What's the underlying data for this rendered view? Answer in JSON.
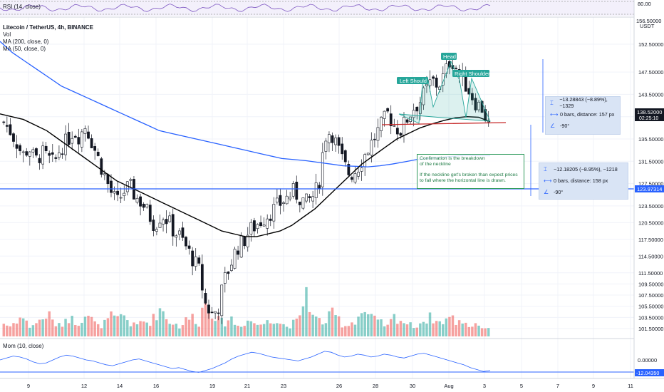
{
  "header": {
    "title": "Litecoin / TetherUS, 4h, BINANCE",
    "vol": "Vol",
    "ma200": "MA (200, close, 0)",
    "ma50": "MA (50, close, 0)",
    "rsi": "RSI (14, close)",
    "mom": "Mom (10, close)"
  },
  "price_axis": {
    "currency": "USDT",
    "ticks": [
      "152.50000",
      "147.50000",
      "143.50000",
      "139.50000",
      "135.50000",
      "131.50000",
      "127.50000",
      "123.50000",
      "120.50000",
      "117.50000",
      "114.50000",
      "111.50000",
      "109.50000",
      "107.50000",
      "105.50000",
      "103.50000",
      "101.50000"
    ],
    "current_price": "138.52000",
    "countdown": "02:25:10",
    "neckline_price": "123.97314",
    "top_partial": "156.50000"
  },
  "rsi_axis": {
    "tick": "80.00"
  },
  "mom_axis": {
    "tick": "0.00000",
    "level": "-12.04350"
  },
  "time_axis": [
    "9",
    "12",
    "14",
    "16",
    "19",
    "21",
    "23",
    "26",
    "28",
    "30",
    "Aug",
    "3",
    "5",
    "7",
    "9",
    "11"
  ],
  "annotations": {
    "head": "Head",
    "left_shoulder": "Left Should",
    "right_shoulder": "Right Shoulder",
    "note_line1": "Confirmation is the breakdown",
    "note_line2": "of the neckline",
    "note_line3": "If the neckline get's broken than expect prices",
    "note_line4": "to fall where the horizontal line is drawn."
  },
  "measure1": {
    "change": "−13.28843 (−8.89%), −1329",
    "bars": "0 bars, distance: 157 px",
    "angle": "-90°"
  },
  "measure2": {
    "change": "−12.18205 (−8.95%), −1218",
    "bars": "0 bars, distance: 158 px",
    "angle": "-90°"
  },
  "colors": {
    "up": "#26a69a",
    "down": "#ef5350",
    "ma200": "#2962ff",
    "ma50": "#000000",
    "pattern": "#26a69a",
    "neckline": "#c62828",
    "hline": "#2962ff"
  },
  "chart_data": {
    "type": "candlestick",
    "symbol": "Litecoin / TetherUS, 4h, BINANCE",
    "x_labels": [
      "9",
      "12",
      "14",
      "16",
      "19",
      "21",
      "23",
      "26",
      "28",
      "30",
      "Aug",
      "3"
    ],
    "close_profile": [
      138.5,
      137,
      135,
      132.5,
      134,
      131.5,
      133,
      132,
      131,
      134,
      135,
      137,
      136,
      138,
      135,
      132,
      129,
      126,
      124,
      126,
      127,
      125,
      124,
      122,
      120,
      122,
      121,
      119,
      118,
      116,
      114,
      112,
      106,
      104,
      105,
      110,
      113,
      116,
      117,
      119,
      120,
      121,
      122,
      123,
      124,
      125,
      126,
      125,
      124,
      125,
      127,
      136,
      137,
      134,
      131,
      129,
      130,
      132,
      134,
      136,
      138,
      140,
      138,
      137,
      139,
      141,
      142,
      144,
      146,
      145,
      147,
      150,
      148,
      146,
      144,
      142,
      141,
      138
    ],
    "ma200_profile": [
      153,
      151,
      149.5,
      148,
      146.5,
      145,
      144,
      143,
      142,
      141,
      140,
      139,
      138,
      137,
      136.5,
      136,
      135.5,
      135,
      134.5,
      134,
      133.5,
      133,
      132.5,
      132,
      131.8,
      131.6,
      131.3,
      131,
      130.7,
      130.6,
      130.5,
      130.7,
      131,
      131.4,
      131.8,
      132,
      132.2,
      132.4,
      132.6,
      132.5,
      132.5
    ],
    "ma50_profile": [
      140,
      139.5,
      139,
      138,
      137,
      135.5,
      134,
      132.5,
      131,
      129.5,
      128,
      127,
      126,
      125,
      124,
      123,
      122,
      121,
      120,
      119,
      118.5,
      118,
      118,
      118.5,
      119,
      120,
      121.5,
      123,
      125,
      127,
      129,
      131,
      132.5,
      134,
      135.5,
      136.5,
      137.5,
      138.2,
      138.8,
      139.3,
      139.5,
      139.4,
      138.6
    ],
    "neckline": 136.5,
    "horizontal_level": 123.97314,
    "volume_profile": [
      4,
      3,
      5,
      6,
      3,
      4,
      5,
      7,
      4,
      3,
      6,
      5,
      4,
      8,
      5,
      3,
      4,
      6,
      5,
      7,
      4,
      3,
      5,
      4,
      6,
      9,
      5,
      4,
      3,
      5,
      6,
      4,
      12,
      8,
      5,
      4,
      6,
      3,
      4,
      5,
      4,
      3,
      6,
      5,
      4,
      3,
      4,
      5,
      15,
      6,
      5,
      4,
      7,
      6,
      3,
      4,
      5,
      8,
      6,
      5,
      4,
      3,
      6,
      5,
      4,
      3,
      4,
      5,
      6,
      4,
      5,
      6,
      4,
      5,
      3,
      4,
      3,
      2
    ],
    "momentum_profile": [
      0,
      2,
      4,
      3,
      1,
      -2,
      -4,
      -3,
      0,
      3,
      5,
      4,
      2,
      0,
      -1,
      -3,
      -5,
      -6,
      -4,
      -2,
      0,
      1,
      -1,
      -3,
      -5,
      -7,
      -9,
      -8,
      -10,
      -12,
      -13,
      -11,
      -9,
      -6,
      -3,
      1,
      4,
      6,
      8,
      7,
      5,
      3,
      2,
      1,
      0,
      -1,
      1,
      3,
      6,
      9,
      8,
      5,
      3,
      4,
      6,
      5,
      3,
      4,
      6,
      5,
      3,
      2,
      4,
      6,
      7,
      5,
      3,
      1,
      -1,
      -3,
      -5,
      -8,
      -10,
      -12,
      -11
    ],
    "rsi_level": 80
  }
}
